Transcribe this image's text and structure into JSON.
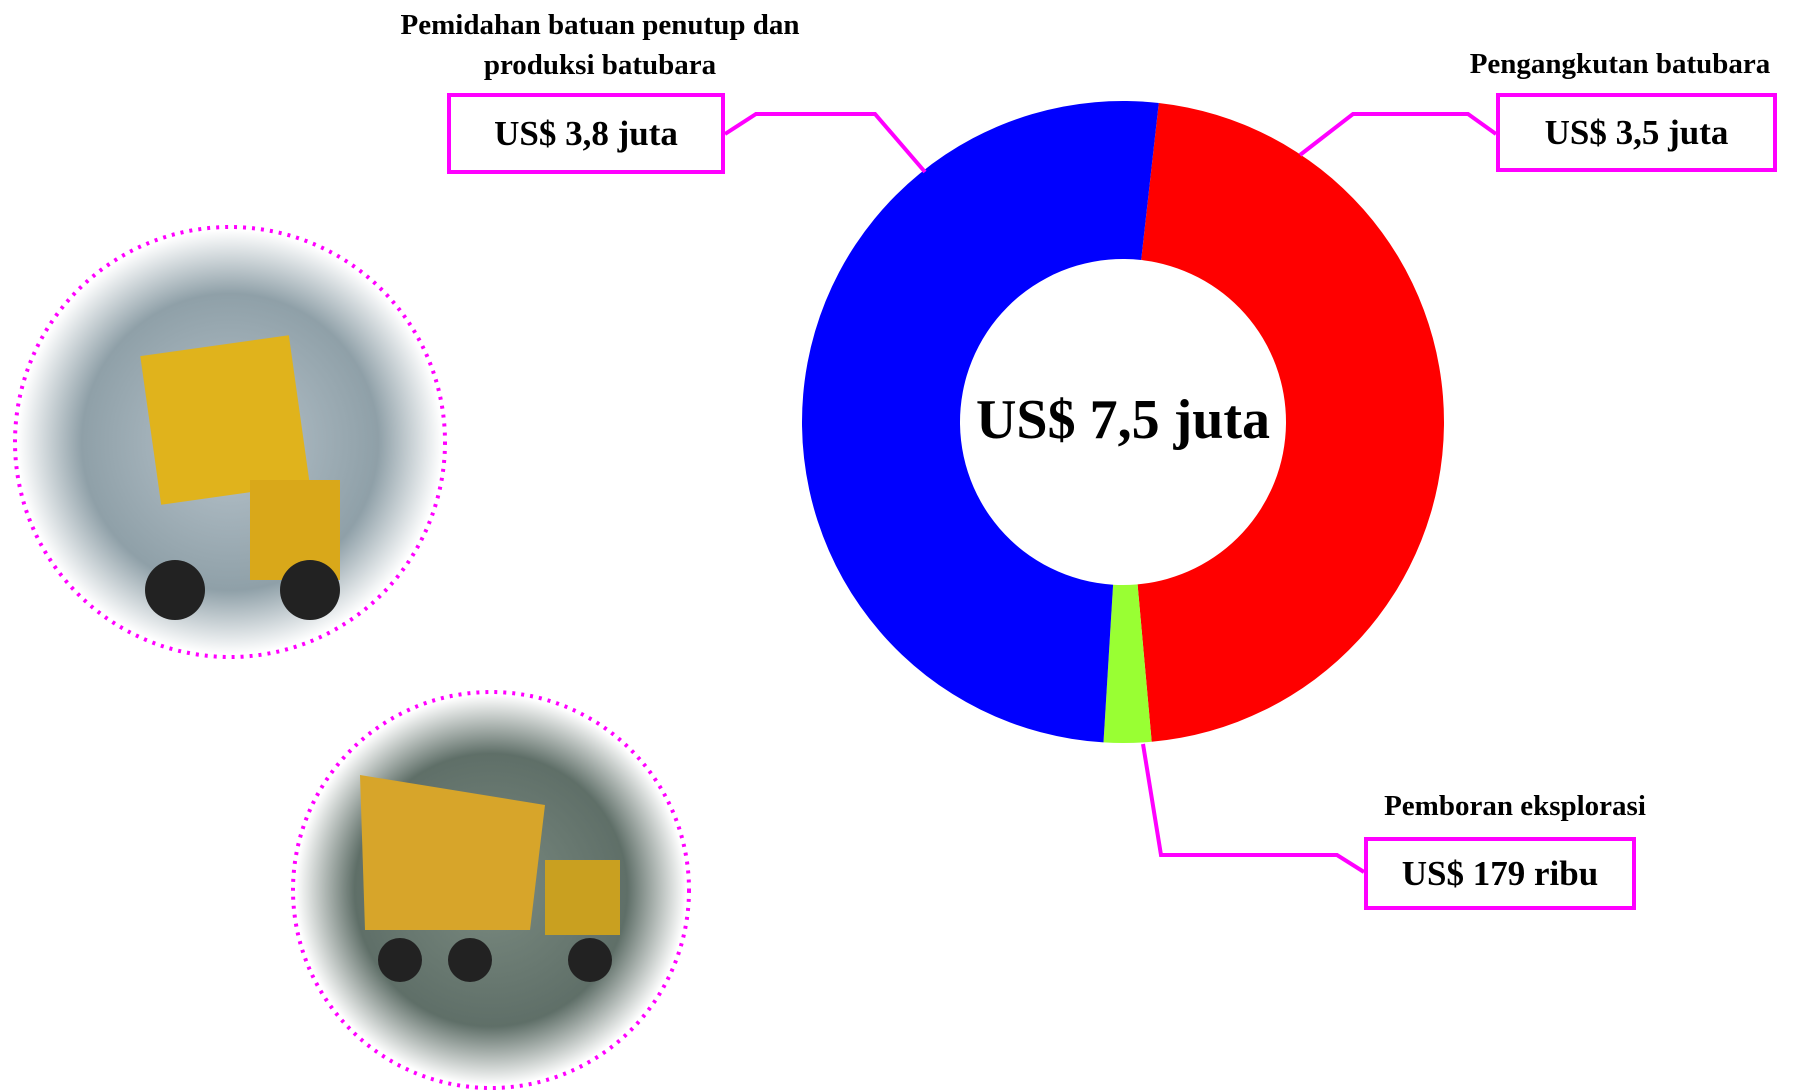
{
  "chart_data": {
    "type": "donut",
    "center_label": "US$ 7,5 juta",
    "categories": [
      "Pengangkutan batubara",
      "Pemboran eksplorasi",
      "Pemidahan batuan penutup dan produksi batubara"
    ],
    "values": [
      3.5,
      0.179,
      3.8
    ],
    "value_labels": [
      "US$ 3,5 juta",
      "US$ 179 ribu",
      "US$ 3,8 juta"
    ],
    "colors": [
      "#ff0000",
      "#99ff33",
      "#0000ff"
    ]
  }
}
